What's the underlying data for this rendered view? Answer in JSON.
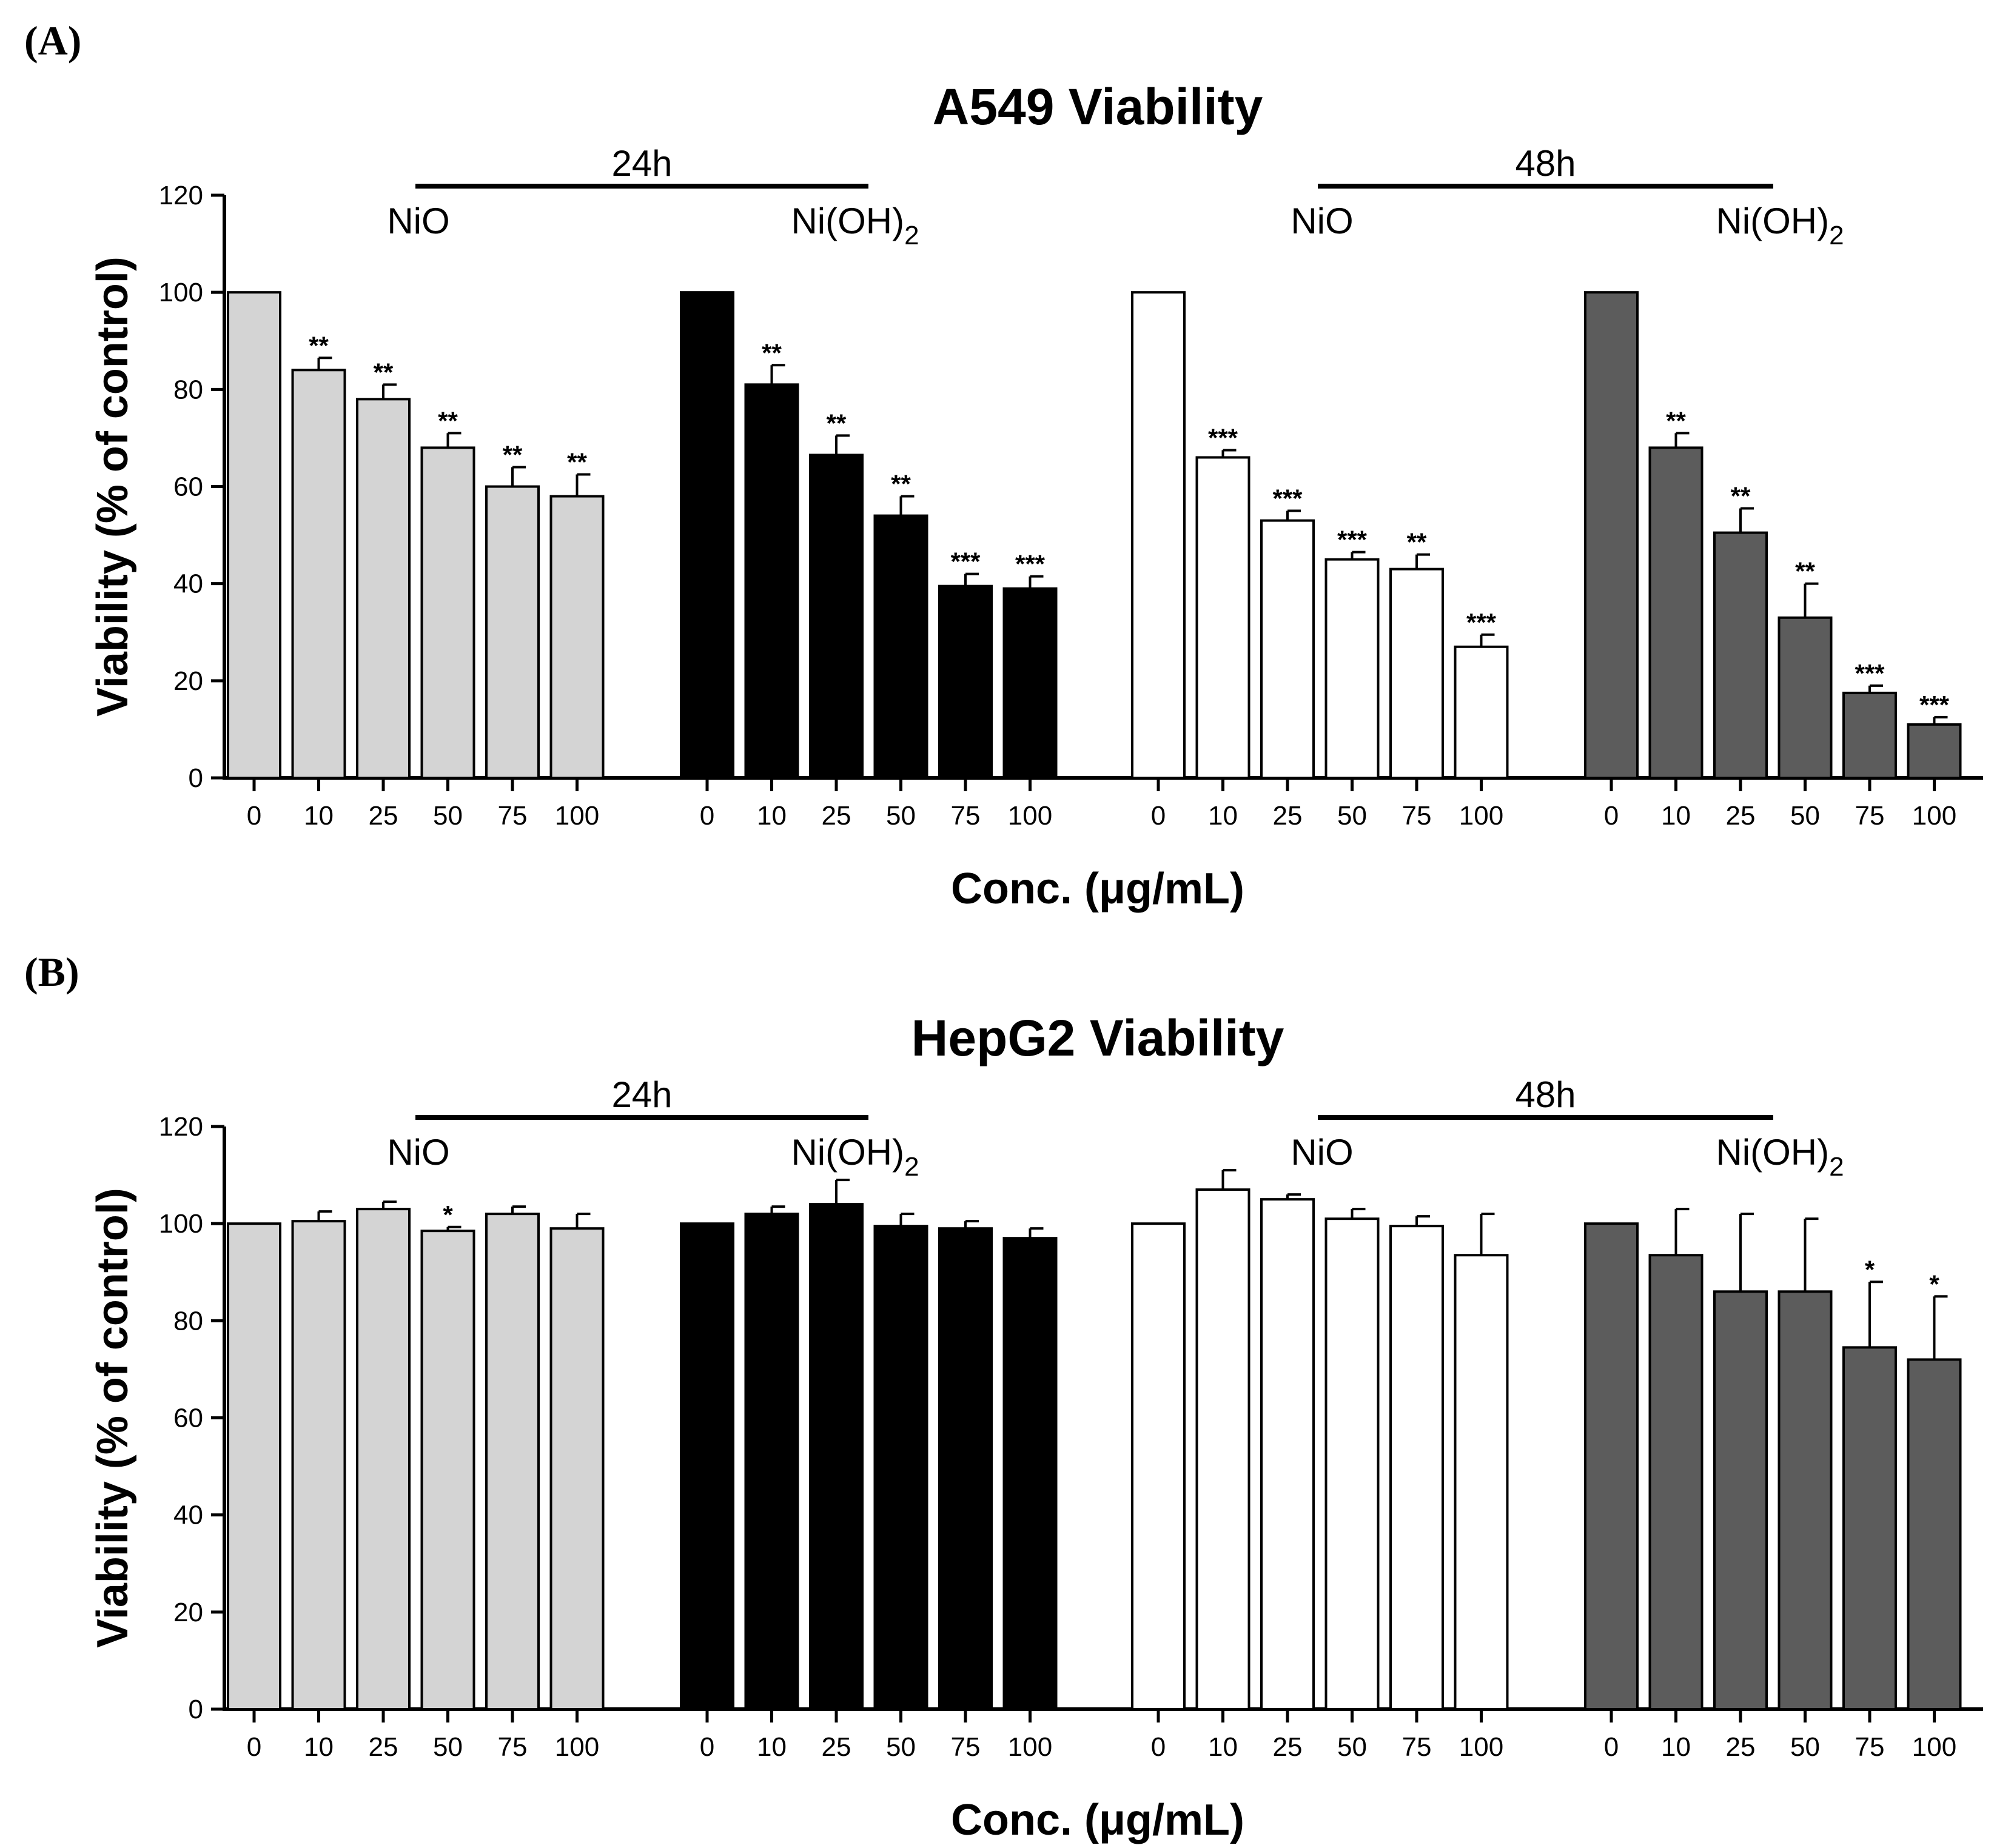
{
  "figure": {
    "panels": [
      {
        "label": "(A)"
      },
      {
        "label": "(B)"
      }
    ]
  },
  "colors": {
    "NiO_24h": "#d4d4d4",
    "NiOH2_24h": "#000000",
    "NiO_48h": "#ffffff",
    "NiOH2_48h": "#5c5c5c",
    "outline": "#000000"
  },
  "chart_data": [
    {
      "type": "bar",
      "title": "A549 Viability",
      "xlabel": "Conc. (μg/mL)",
      "ylabel": "Viability (% of control)",
      "ylim": [
        0,
        120
      ],
      "yticks": [
        "0",
        "20",
        "40",
        "60",
        "80",
        "100",
        "120"
      ],
      "categories": [
        "0",
        "10",
        "25",
        "50",
        "75",
        "100"
      ],
      "time_labels": [
        "24h",
        "48h"
      ],
      "groups": [
        {
          "time": "24h",
          "name": "NiO",
          "name_sub": "",
          "values": [
            100,
            84,
            78,
            68,
            60,
            58
          ],
          "errors": [
            0,
            2.5,
            3,
            3,
            4,
            4.5
          ],
          "sig": [
            "",
            "**",
            "**",
            "**",
            "**",
            "**"
          ]
        },
        {
          "time": "24h",
          "name": "Ni(OH)",
          "name_sub": "2",
          "values": [
            100,
            81,
            66.5,
            54,
            39.5,
            39
          ],
          "errors": [
            0,
            4,
            4,
            4,
            2.5,
            2.5
          ],
          "sig": [
            "",
            "**",
            "**",
            "**",
            "***",
            "***"
          ]
        },
        {
          "time": "48h",
          "name": "NiO",
          "name_sub": "",
          "values": [
            100,
            66,
            53,
            45,
            43,
            27
          ],
          "errors": [
            0,
            1.5,
            2,
            1.5,
            3,
            2.5
          ],
          "sig": [
            "",
            "***",
            "***",
            "***",
            "**",
            "***"
          ]
        },
        {
          "time": "48h",
          "name": "Ni(OH)",
          "name_sub": "2",
          "values": [
            100,
            68,
            50.5,
            33,
            17.5,
            11
          ],
          "errors": [
            0,
            3,
            5,
            7,
            1.5,
            1.5
          ],
          "sig": [
            "",
            "**",
            "**",
            "**",
            "***",
            "***"
          ]
        }
      ]
    },
    {
      "type": "bar",
      "title": "HepG2 Viability",
      "xlabel": "Conc. (μg/mL)",
      "ylabel": "Viability (% of control)",
      "ylim": [
        0,
        120
      ],
      "yticks": [
        "0",
        "20",
        "40",
        "60",
        "80",
        "100",
        "120"
      ],
      "categories": [
        "0",
        "10",
        "25",
        "50",
        "75",
        "100"
      ],
      "time_labels": [
        "24h",
        "48h"
      ],
      "groups": [
        {
          "time": "24h",
          "name": "NiO",
          "name_sub": "",
          "values": [
            100,
            100.5,
            103,
            98.5,
            102,
            99
          ],
          "errors": [
            0,
            2,
            1.5,
            0.8,
            1.5,
            3
          ],
          "sig": [
            "",
            "",
            "",
            "*",
            "",
            ""
          ]
        },
        {
          "time": "24h",
          "name": "Ni(OH)",
          "name_sub": "2",
          "values": [
            100,
            102,
            104,
            99.5,
            99,
            97
          ],
          "errors": [
            0,
            1.5,
            5,
            2.5,
            1.5,
            2
          ],
          "sig": [
            "",
            "",
            "",
            "",
            "",
            ""
          ]
        },
        {
          "time": "48h",
          "name": "NiO",
          "name_sub": "",
          "values": [
            100,
            107,
            105,
            101,
            99.5,
            93.5
          ],
          "errors": [
            0,
            4,
            1,
            2,
            2,
            8.5
          ],
          "sig": [
            "",
            "",
            "",
            "",
            "",
            ""
          ]
        },
        {
          "time": "48h",
          "name": "Ni(OH)",
          "name_sub": "2",
          "values": [
            100,
            93.5,
            86,
            86,
            74.5,
            72
          ],
          "errors": [
            0,
            9.5,
            16,
            15,
            13.5,
            13
          ],
          "sig": [
            "",
            "",
            "",
            "",
            "*",
            "*"
          ]
        }
      ]
    }
  ]
}
